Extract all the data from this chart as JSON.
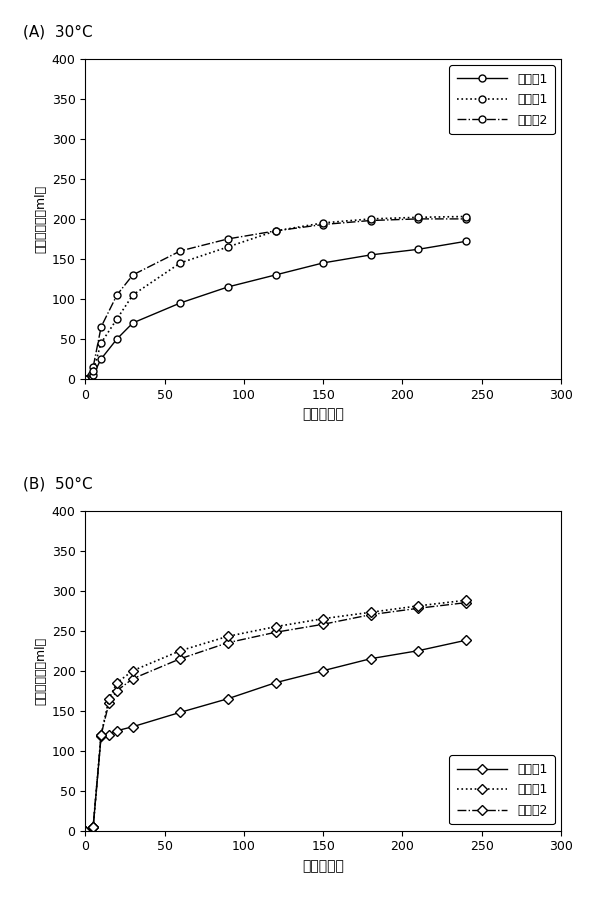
{
  "panel_A_title": "(A)  30°C",
  "panel_B_title": "(B)  50°C",
  "xlabel": "時間［秒］",
  "ylabel": "ガス発生量［ml］",
  "xlim": [
    0,
    300
  ],
  "ylim": [
    0,
    400
  ],
  "xticks": [
    0,
    50,
    100,
    150,
    200,
    250,
    300
  ],
  "yticks": [
    0,
    50,
    100,
    150,
    200,
    250,
    300,
    350,
    400
  ],
  "legend_labels": [
    "実施例1",
    "比較例1",
    "比較例2"
  ],
  "A": {
    "x": [
      0,
      5,
      10,
      20,
      30,
      60,
      90,
      120,
      150,
      180,
      210,
      240
    ],
    "series1": [
      0,
      5,
      25,
      50,
      70,
      95,
      115,
      130,
      145,
      155,
      162,
      172
    ],
    "series2": [
      0,
      15,
      65,
      105,
      130,
      160,
      175,
      185,
      193,
      198,
      200,
      200
    ],
    "series3": [
      0,
      10,
      45,
      75,
      105,
      145,
      165,
      185,
      195,
      200,
      202,
      203
    ]
  },
  "B": {
    "x": [
      0,
      5,
      10,
      15,
      20,
      30,
      60,
      90,
      120,
      150,
      180,
      210,
      240
    ],
    "series1": [
      0,
      5,
      118,
      120,
      125,
      130,
      148,
      165,
      185,
      200,
      215,
      225,
      238
    ],
    "series2": [
      0,
      5,
      120,
      160,
      175,
      190,
      215,
      235,
      248,
      258,
      270,
      278,
      285
    ],
    "series3": [
      0,
      5,
      120,
      165,
      185,
      200,
      225,
      243,
      255,
      265,
      273,
      281,
      288
    ]
  },
  "line_color": "#000000",
  "background_color": "#ffffff",
  "legend_A_loc": "upper right",
  "legend_B_loc": "lower right"
}
